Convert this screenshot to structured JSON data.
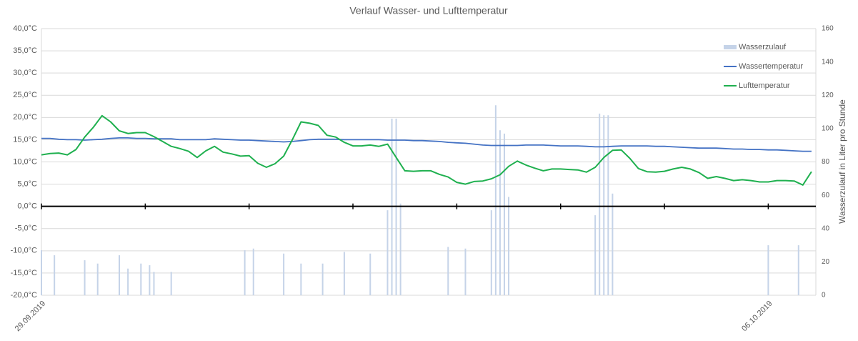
{
  "chart_data": {
    "type": "combo",
    "title": "Verlauf Wasser- und Lufttemperatur",
    "y2label": "Wasserzulauf in Liter pro Stunde",
    "x": [
      0,
      2,
      4,
      6,
      8,
      10,
      12,
      14,
      16,
      18,
      20,
      22,
      24,
      26,
      28,
      30,
      32,
      34,
      36,
      38,
      40,
      42,
      44,
      46,
      48,
      50,
      52,
      54,
      56,
      58,
      60,
      62,
      64,
      66,
      68,
      70,
      72,
      74,
      76,
      78,
      80,
      82,
      84,
      86,
      88,
      90,
      92,
      94,
      96,
      98,
      100,
      102,
      104,
      106,
      108,
      110,
      112,
      114,
      116,
      118,
      120,
      122,
      124,
      126,
      128,
      130,
      132,
      134,
      136,
      138,
      140,
      142,
      144,
      146,
      148,
      150,
      152,
      154,
      156,
      158,
      160,
      162,
      164,
      166,
      168,
      170,
      172,
      174,
      176,
      178
    ],
    "xlim": [
      0,
      179
    ],
    "xticks": [
      {
        "value": 0,
        "label": "29.09.2019"
      },
      {
        "value": 168,
        "label": "06.10.2019"
      }
    ],
    "xtick_marks": [
      0,
      24,
      48,
      72,
      96,
      120,
      144,
      168
    ],
    "ylim": [
      -20,
      40
    ],
    "yticks": [
      {
        "value": 40,
        "label": "40,0°C"
      },
      {
        "value": 35,
        "label": "35,0°C"
      },
      {
        "value": 30,
        "label": "30,0°C"
      },
      {
        "value": 25,
        "label": "25,0°C"
      },
      {
        "value": 20,
        "label": "20,0°C"
      },
      {
        "value": 15,
        "label": "15,0°C"
      },
      {
        "value": 10,
        "label": "10,0°C"
      },
      {
        "value": 5,
        "label": "5,0°C"
      },
      {
        "value": 0,
        "label": "0,0°C"
      },
      {
        "value": -5,
        "label": "-5,0°C"
      },
      {
        "value": -10,
        "label": "-10,0°C"
      },
      {
        "value": -15,
        "label": "-15,0°C"
      },
      {
        "value": -20,
        "label": "-20,0°C"
      }
    ],
    "y2lim": [
      0,
      160
    ],
    "y2ticks": [
      0,
      20,
      40,
      60,
      80,
      100,
      120,
      140,
      160
    ],
    "grid": true,
    "legend": "upper right",
    "series": [
      {
        "name": "Wasserzulauf",
        "type": "bar",
        "axis": "y2",
        "color": "#c5d3e8",
        "x": [
          0,
          3,
          10,
          13,
          18,
          20,
          23,
          25,
          26,
          30,
          47,
          49,
          56,
          60,
          65,
          70,
          76,
          80,
          81,
          82,
          83,
          94,
          98,
          104,
          105,
          106,
          107,
          108,
          128,
          129,
          130,
          131,
          132,
          168,
          175
        ],
        "values": [
          27,
          24,
          21,
          19,
          24,
          16,
          19,
          18,
          14,
          14,
          27,
          28,
          25,
          19,
          19,
          26,
          25,
          51,
          106,
          106,
          55,
          29,
          28,
          51,
          114,
          99,
          97,
          59,
          48,
          109,
          108,
          108,
          61,
          30,
          30
        ]
      },
      {
        "name": "Wassertemperatur",
        "type": "line",
        "color": "#4472c4",
        "values": [
          15.3,
          15.3,
          15.1,
          15.0,
          15.0,
          14.9,
          15.0,
          15.1,
          15.3,
          15.4,
          15.4,
          15.3,
          15.3,
          15.2,
          15.2,
          15.2,
          15.0,
          15.0,
          15.0,
          15.0,
          15.2,
          15.1,
          15.0,
          14.9,
          14.9,
          14.8,
          14.7,
          14.6,
          14.5,
          14.6,
          14.8,
          15.0,
          15.1,
          15.1,
          15.1,
          15.0,
          15.0,
          15.0,
          15.0,
          15.0,
          14.9,
          14.9,
          14.9,
          14.8,
          14.8,
          14.7,
          14.6,
          14.4,
          14.3,
          14.2,
          14.0,
          13.8,
          13.7,
          13.7,
          13.7,
          13.7,
          13.8,
          13.8,
          13.8,
          13.7,
          13.6,
          13.6,
          13.6,
          13.5,
          13.4,
          13.4,
          13.5,
          13.6,
          13.6,
          13.6,
          13.6,
          13.5,
          13.5,
          13.4,
          13.3,
          13.2,
          13.1,
          13.1,
          13.1,
          13.0,
          12.9,
          12.9,
          12.8,
          12.8,
          12.7,
          12.7,
          12.6,
          12.5,
          12.4,
          12.4
        ]
      },
      {
        "name": "Lufttemperatur",
        "type": "line",
        "color": "#1fb04f",
        "values": [
          11.6,
          11.9,
          12.0,
          11.6,
          12.8,
          15.6,
          17.8,
          20.4,
          19.0,
          17.0,
          16.4,
          16.6,
          16.6,
          15.7,
          14.6,
          13.5,
          13.0,
          12.4,
          11.0,
          12.5,
          13.5,
          12.2,
          11.8,
          11.3,
          11.4,
          9.7,
          8.8,
          9.6,
          11.3,
          15.0,
          19.0,
          18.7,
          18.2,
          16.0,
          15.6,
          14.4,
          13.6,
          13.6,
          13.8,
          13.5,
          14.0,
          11.0,
          8.0,
          7.9,
          8.0,
          8.0,
          7.2,
          6.6,
          5.4,
          5.0,
          5.6,
          5.7,
          6.2,
          7.1,
          9.0,
          10.2,
          9.3,
          8.6,
          8.0,
          8.4,
          8.4,
          8.3,
          8.2,
          7.7,
          8.8,
          11.0,
          12.6,
          12.7,
          10.8,
          8.5,
          7.8,
          7.7,
          7.9,
          8.4,
          8.8,
          8.4,
          7.6,
          6.3,
          6.7,
          6.3,
          5.8,
          6.0,
          5.8,
          5.5,
          5.5,
          5.8,
          5.8,
          5.7,
          4.8,
          7.8
        ]
      }
    ]
  }
}
